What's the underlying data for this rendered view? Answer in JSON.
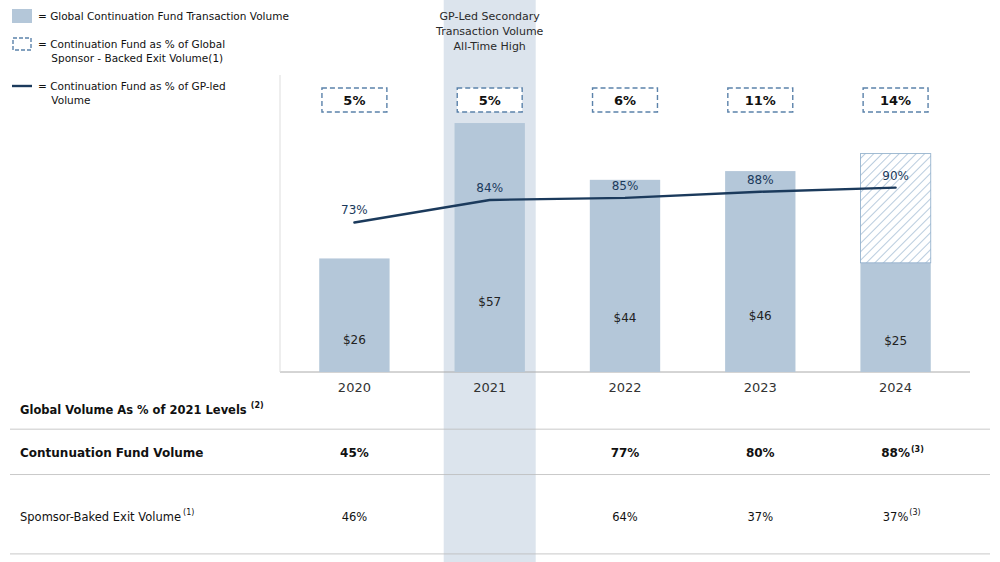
{
  "chart_data": {
    "type": "bar",
    "categories": [
      "2020",
      "2021",
      "2022",
      "2023",
      "2024"
    ],
    "stacked": true,
    "grid": false,
    "legend": "upper left",
    "tick_labels": "x",
    "data_labels": true,
    "ylim": [
      0,
      68
    ],
    "y2lim": [
      0,
      145
    ],
    "series": [
      {
        "name": "= Global Continuation Fund Transaction Volume",
        "type": "bar",
        "color": "#b4c7d9",
        "values": [
          26,
          57,
          44,
          46,
          25
        ],
        "value_labels": [
          "$26",
          "$57",
          "$44",
          "$46",
          "$25"
        ]
      },
      {
        "type": "bar",
        "marker": "hatch",
        "color": "#8aaac8",
        "values": [
          0,
          0,
          0,
          0,
          25
        ]
      },
      {
        "name": "= Continuation Fund as % of Global\n    Sponsor - Backed Exit Volume(1)",
        "type": "label",
        "line_style": "dashed",
        "color": "#5b82aa",
        "values": [
          5,
          5,
          6,
          11,
          14
        ],
        "value_labels": [
          "5%",
          "5%",
          "6%",
          "11%",
          "14%"
        ]
      },
      {
        "name": "= Continuation Fund as % of GP-led\n    Volume",
        "type": "line",
        "axis": "y2",
        "color": "#1b3a5c",
        "values": [
          73,
          84,
          85,
          88,
          90
        ],
        "value_labels": [
          "73%",
          "84%",
          "85%",
          "88%",
          "90%"
        ]
      }
    ],
    "annotations": [
      {
        "text": "GP-Led Secondary\nTransaction Volume\nAll-Time High",
        "category": "2021",
        "color": "#dce4ed"
      }
    ],
    "table": {
      "title": "Global Volume As % of 2021 Levels",
      "title_footnote": "(2)",
      "rows": [
        {
          "label": "Contunuation Fund Volume",
          "values": [
            45,
            null,
            77,
            80,
            88
          ],
          "value_labels": [
            "45%",
            null,
            "77%",
            "80%",
            "88%"
          ],
          "footnotes": [
            null,
            null,
            null,
            null,
            "(3)"
          ]
        },
        {
          "label": "Spomsor-Baked Exit Volume",
          "label_footnote": "(1)",
          "values": [
            46,
            null,
            64,
            37,
            37
          ],
          "value_labels": [
            "46%",
            null,
            "64%",
            "37%",
            "37%"
          ],
          "footnotes": [
            null,
            null,
            null,
            null,
            "(3)"
          ]
        }
      ]
    }
  }
}
